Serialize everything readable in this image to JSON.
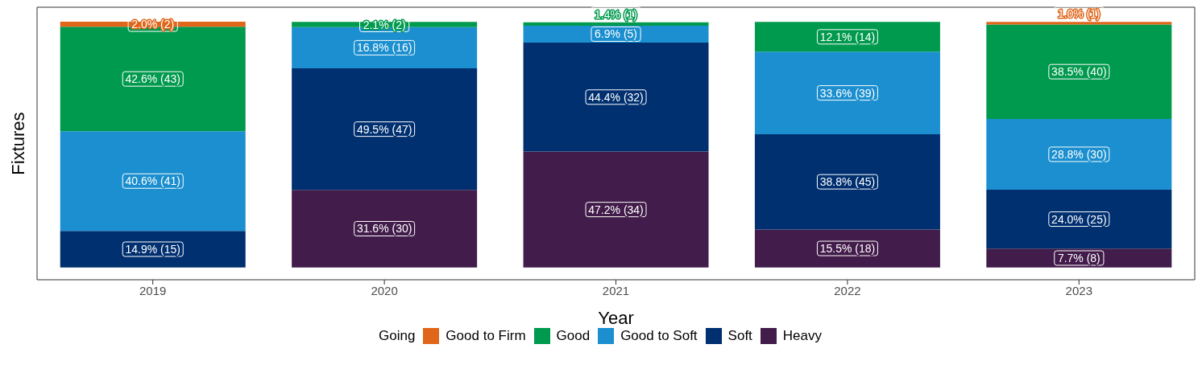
{
  "chart_data": {
    "type": "bar",
    "stacked": true,
    "xlabel": "Year",
    "ylabel": "Fixtures",
    "legend_title": "Going",
    "legend": "bottom",
    "grid": false,
    "tick_labels": "x",
    "categories": [
      "2019",
      "2020",
      "2021",
      "2022",
      "2023"
    ],
    "ylim": [
      -5,
      106
    ],
    "series": [
      {
        "name": "Heavy",
        "color": "#421c4a",
        "values": [
          null,
          31.6,
          47.2,
          15.5,
          7.7
        ],
        "value_labels": [
          null,
          "31.6% (30)",
          "47.2% (34)",
          "15.5% (18)",
          "7.7% (8)"
        ]
      },
      {
        "name": "Soft",
        "color": "#003070",
        "values": [
          14.9,
          49.5,
          44.4,
          38.8,
          24.0
        ],
        "value_labels": [
          "14.9% (15)",
          "49.5% (47)",
          "44.4% (32)",
          "38.8% (45)",
          "24.0% (25)"
        ]
      },
      {
        "name": "Good to Soft",
        "color": "#1b8fcf",
        "values": [
          40.6,
          16.8,
          6.9,
          33.6,
          28.8
        ],
        "value_labels": [
          "40.6% (41)",
          "16.8% (16)",
          "6.9% (5)",
          "33.6% (39)",
          "28.8% (30)"
        ]
      },
      {
        "name": "Good",
        "color": "#009a4e",
        "values": [
          42.6,
          2.1,
          1.4,
          12.1,
          38.5
        ],
        "value_labels": [
          "42.6% (43)",
          "2.1% (2)",
          "1.4% (1)",
          "12.1% (14)",
          "38.5% (40)"
        ]
      },
      {
        "name": "Good to Firm",
        "color": "#e0661a",
        "values": [
          2.0,
          null,
          null,
          null,
          1.0
        ],
        "value_labels": [
          "2.0% (2)",
          null,
          null,
          null,
          "1.0% (1)"
        ]
      }
    ]
  }
}
